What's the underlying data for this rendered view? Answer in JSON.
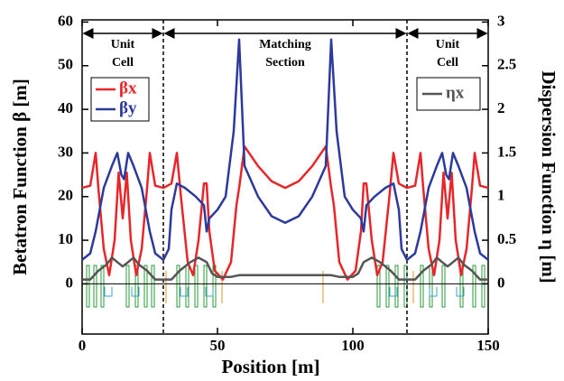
{
  "chart_data": {
    "type": "line",
    "xlabel": "Position [m]",
    "ylabel": "Betatron Function β [m]",
    "y2label": "Dispersion Function η [m]",
    "xlim": [
      0,
      150
    ],
    "xticks": [
      0,
      50,
      100,
      150
    ],
    "ylim": [
      -11.5,
      60.5
    ],
    "yticks": [
      0,
      10,
      20,
      30,
      40,
      50,
      60
    ],
    "y2lim": [
      -0.575,
      3.025
    ],
    "y2ticks": [
      0,
      0.5,
      1,
      1.5,
      2,
      2.5,
      3
    ],
    "vlines": [
      30,
      120
    ],
    "regions": [
      {
        "range": [
          0,
          30
        ],
        "lines": [
          "Unit",
          "Cell"
        ]
      },
      {
        "range": [
          30,
          120
        ],
        "lines": [
          "Matching",
          "Section"
        ]
      },
      {
        "range": [
          120,
          150
        ],
        "lines": [
          "Unit",
          "Cell"
        ]
      }
    ],
    "series": [
      {
        "name": "βx",
        "color": "#e8262a",
        "axis": "y",
        "x": [
          0,
          3,
          5,
          6,
          8,
          10,
          12,
          13.5,
          15,
          16.5,
          18,
          20,
          22,
          24,
          25,
          27,
          30,
          33,
          35,
          36.5,
          39,
          41,
          43,
          45,
          46,
          47,
          49,
          52,
          55,
          57,
          58,
          60,
          65,
          70,
          75,
          80,
          85,
          90,
          92,
          93,
          95,
          98,
          101,
          103,
          104,
          105,
          107,
          109,
          111,
          113.5,
          115,
          117,
          120,
          123,
          125,
          126,
          128,
          130,
          132,
          133.5,
          135,
          136.5,
          138,
          140,
          142,
          144,
          145,
          147,
          150
        ],
        "values": [
          22,
          22.5,
          30,
          22,
          8,
          2,
          10,
          25.5,
          15,
          25.5,
          10,
          2,
          8,
          22,
          30,
          22.5,
          22,
          23,
          30,
          20,
          5,
          2,
          10,
          23,
          23,
          12,
          3,
          1,
          5,
          18,
          22,
          31.5,
          27,
          23.5,
          22,
          23.5,
          27,
          31.5,
          22,
          18,
          5,
          1,
          3,
          12,
          23,
          23,
          10,
          2,
          5,
          20,
          30,
          23,
          22,
          22.5,
          30,
          22,
          8,
          2,
          10,
          25.5,
          15,
          25.5,
          10,
          2,
          8,
          22,
          30,
          22.5,
          22
        ]
      },
      {
        "name": "βy",
        "color": "#2b3a9c",
        "axis": "y",
        "x": [
          0,
          3,
          5,
          8,
          11,
          13,
          14.5,
          15.5,
          17,
          19,
          22,
          25,
          27,
          30,
          32,
          33,
          35,
          38,
          42,
          45,
          46,
          47,
          50,
          53,
          56,
          58,
          60,
          65,
          70,
          75,
          80,
          85,
          90,
          92,
          94,
          97,
          100,
          103,
          104,
          105,
          108,
          112,
          115,
          117,
          118,
          120,
          123,
          125,
          128,
          131,
          133,
          134.5,
          135.5,
          137,
          139,
          142,
          145,
          147,
          150
        ],
        "values": [
          5.5,
          7,
          12,
          22,
          27,
          30,
          25,
          24,
          30,
          27,
          22,
          12,
          7,
          5.5,
          8,
          17,
          23,
          22,
          20,
          18,
          12,
          15,
          17,
          20,
          35,
          56,
          27,
          20,
          15.5,
          14,
          15.5,
          20,
          27,
          56,
          35,
          20,
          17,
          15,
          12,
          18,
          20,
          22,
          23,
          17,
          8,
          5.5,
          7,
          12,
          22,
          27,
          30,
          25,
          24,
          30,
          27,
          22,
          12,
          7,
          5.5
        ]
      },
      {
        "name": "ηx",
        "color": "#555555",
        "axis": "y2",
        "x": [
          0,
          3,
          6,
          9,
          11,
          13,
          15,
          17,
          19,
          21,
          24,
          27,
          30,
          33,
          36,
          40,
          43,
          46,
          48,
          50,
          55,
          58,
          60,
          90,
          92,
          95,
          100,
          102,
          104,
          107,
          110,
          114,
          117,
          120,
          123,
          126,
          129,
          131,
          133,
          135,
          137,
          139,
          141,
          144,
          147,
          150
        ],
        "values": [
          0.05,
          0.05,
          0.15,
          0.22,
          0.3,
          0.25,
          0.2,
          0.25,
          0.3,
          0.22,
          0.15,
          0.05,
          0.05,
          0.05,
          0.15,
          0.25,
          0.3,
          0.25,
          0.12,
          0.08,
          0.08,
          0.1,
          0.1,
          0.1,
          0.1,
          0.08,
          0.08,
          0.12,
          0.25,
          0.3,
          0.25,
          0.15,
          0.05,
          0.05,
          0.05,
          0.15,
          0.22,
          0.3,
          0.25,
          0.2,
          0.25,
          0.3,
          0.22,
          0.15,
          0.05,
          0.05
        ]
      }
    ]
  }
}
